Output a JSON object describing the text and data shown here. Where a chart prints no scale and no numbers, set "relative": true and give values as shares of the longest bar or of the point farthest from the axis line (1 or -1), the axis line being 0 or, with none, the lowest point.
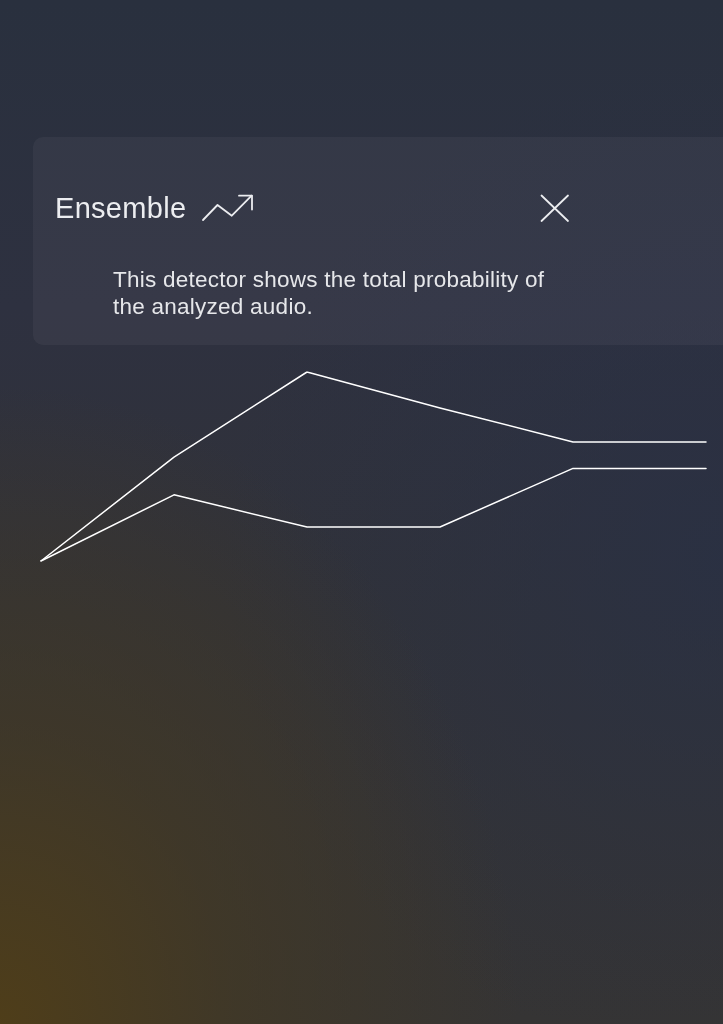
{
  "chart_data": {
    "type": "line",
    "title": "Ensemble",
    "subtitle": "This detector shows the total probability of the analyzed audio.",
    "categories": [
      null,
      null,
      null,
      null,
      null,
      null
    ],
    "relative": true,
    "series": [
      {
        "color": "#ffffff",
        "values": [
          0,
          0.55,
          1,
          0.81,
          0.63,
          0.63
        ]
      },
      {
        "color": "#ffffff",
        "values": [
          0,
          0.35,
          0.18,
          0.18,
          0.49,
          0.49
        ]
      }
    ],
    "marker": "none",
    "line_style": "solid"
  }
}
